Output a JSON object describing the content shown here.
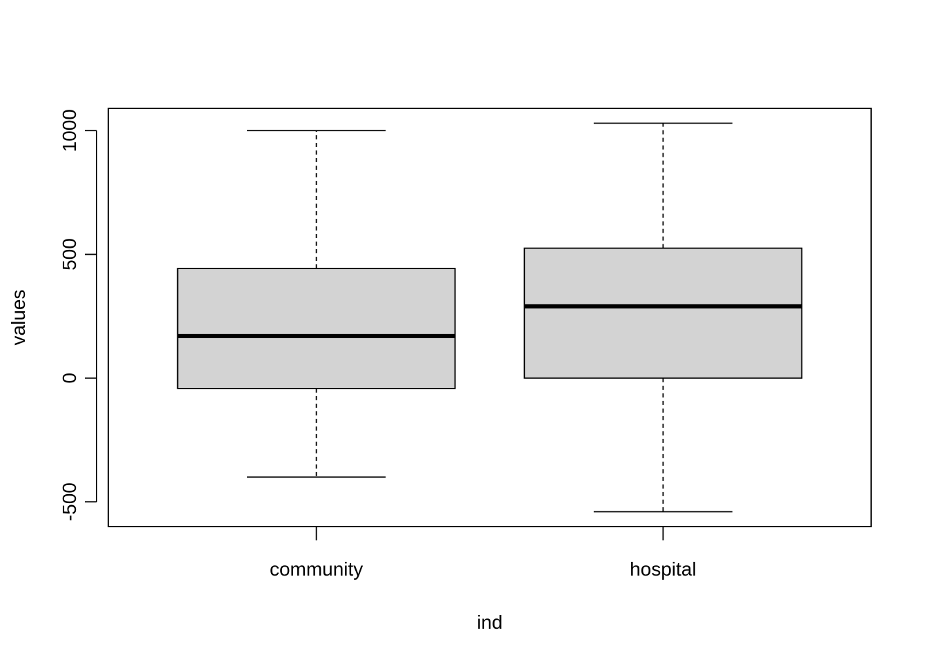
{
  "chart_data": {
    "type": "boxplot",
    "title": "",
    "xlabel": "ind",
    "ylabel": "values",
    "ylim": [
      -600,
      1090
    ],
    "y_ticks": [
      -500,
      0,
      500,
      1000
    ],
    "y_tick_labels": [
      "-500",
      "0",
      "500",
      "1000"
    ],
    "categories": [
      "community",
      "hospital"
    ],
    "boxes": [
      {
        "category": "community",
        "whisker_low": -400,
        "q1": -42,
        "median": 170,
        "q3": 443,
        "whisker_high": 1000
      },
      {
        "category": "hospital",
        "whisker_low": -540,
        "q1": 0,
        "median": 290,
        "q3": 525,
        "whisker_high": 1030
      }
    ],
    "grid": false,
    "legend": "none",
    "colors": {
      "box_fill": "#d3d3d3",
      "stroke": "#000000"
    }
  }
}
